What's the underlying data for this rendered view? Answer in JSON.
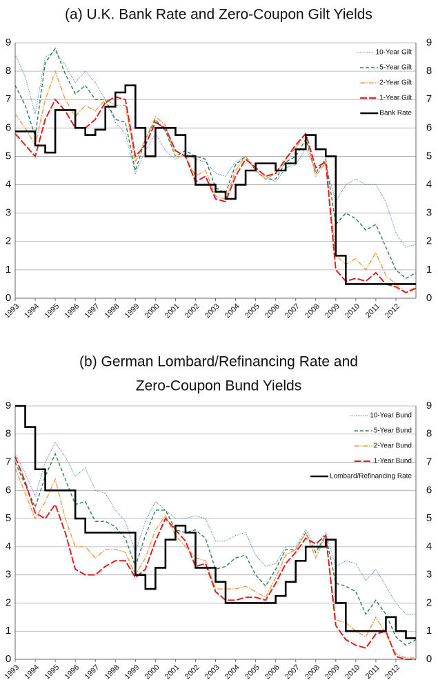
{
  "chart_data": [
    {
      "type": "line",
      "title": [
        "(a) U.K. Bank Rate and Zero-Coupon Gilt Yields"
      ],
      "x": [
        1993,
        1993.5,
        1994,
        1994.5,
        1995,
        1995.5,
        1996,
        1996.5,
        1997,
        1997.5,
        1998,
        1998.5,
        1999,
        1999.5,
        2000,
        2000.5,
        2001,
        2001.5,
        2002,
        2002.5,
        2003,
        2003.5,
        2004,
        2004.5,
        2005,
        2005.5,
        2006,
        2006.5,
        2007,
        2007.5,
        2008,
        2008.5,
        2009,
        2009.5,
        2010,
        2010.5,
        2011,
        2011.5,
        2012,
        2012.5,
        2013
      ],
      "xlim": [
        1993,
        2013
      ],
      "xticks": [
        1993,
        1994,
        1995,
        1996,
        1997,
        1998,
        1999,
        2000,
        2001,
        2002,
        2003,
        2004,
        2005,
        2006,
        2007,
        2008,
        2009,
        2010,
        2011,
        2012
      ],
      "ylim": [
        0,
        9
      ],
      "yticks": [
        0,
        1,
        2,
        3,
        4,
        5,
        6,
        7,
        8,
        9
      ],
      "grid": true,
      "legend": "upper right",
      "series": [
        {
          "name": "10-Year Gilt",
          "color": "#4f81bd",
          "style": "dotted",
          "values": [
            8.6,
            7.8,
            6.5,
            8.5,
            8.7,
            8.2,
            7.6,
            8.0,
            7.6,
            7.0,
            6.2,
            5.8,
            4.4,
            5.2,
            5.8,
            5.2,
            4.9,
            5.1,
            4.9,
            4.8,
            4.4,
            4.3,
            4.8,
            5.0,
            4.6,
            4.3,
            4.1,
            4.6,
            4.7,
            5.3,
            4.5,
            4.7,
            3.4,
            4.0,
            4.2,
            4.0,
            4.0,
            3.4,
            2.3,
            1.8,
            1.9
          ]
        },
        {
          "name": "5-Year Gilt",
          "color": "#2e7d4f",
          "style": "dashed",
          "values": [
            7.5,
            6.8,
            5.7,
            8.3,
            8.8,
            7.9,
            7.2,
            7.5,
            7.0,
            7.0,
            6.3,
            6.2,
            4.5,
            5.6,
            6.3,
            5.9,
            5.0,
            5.2,
            5.0,
            4.9,
            3.9,
            3.7,
            4.7,
            5.0,
            4.5,
            4.2,
            4.2,
            4.8,
            5.0,
            5.6,
            4.4,
            4.9,
            2.6,
            3.0,
            2.8,
            2.4,
            2.6,
            1.8,
            1.0,
            0.7,
            0.9
          ]
        },
        {
          "name": "2-Year Gilt",
          "color": "#f79646",
          "style": "dashdot",
          "values": [
            6.5,
            6.0,
            5.4,
            7.0,
            8.0,
            7.0,
            6.4,
            6.8,
            6.6,
            7.0,
            6.8,
            6.8,
            4.8,
            5.6,
            6.4,
            6.1,
            5.0,
            5.0,
            4.3,
            4.5,
            3.6,
            3.5,
            4.5,
            5.0,
            4.5,
            4.2,
            4.4,
            4.9,
            5.3,
            5.8,
            4.3,
            4.8,
            1.5,
            1.2,
            1.4,
            1.0,
            1.6,
            0.8,
            0.5,
            0.2,
            0.4
          ]
        },
        {
          "name": "1-Year Gilt",
          "color": "#e02020",
          "style": "longdash",
          "values": [
            5.8,
            5.4,
            5.0,
            6.3,
            7.0,
            6.6,
            6.0,
            6.0,
            6.3,
            6.9,
            7.1,
            7.0,
            5.0,
            5.4,
            6.2,
            6.0,
            5.2,
            5.0,
            4.1,
            4.3,
            3.5,
            3.4,
            4.3,
            4.9,
            4.6,
            4.3,
            4.4,
            4.9,
            5.4,
            5.8,
            4.6,
            4.8,
            1.0,
            0.6,
            0.7,
            0.6,
            0.9,
            0.5,
            0.4,
            0.2,
            0.35
          ]
        },
        {
          "name": "Bank Rate",
          "color": "#000000",
          "style": "solid",
          "step": true,
          "values": [
            5.88,
            5.88,
            5.38,
            5.13,
            6.63,
            6.63,
            6.0,
            5.75,
            5.94,
            6.75,
            7.25,
            7.5,
            6.0,
            5.0,
            6.0,
            6.0,
            5.75,
            5.0,
            4.0,
            4.0,
            3.75,
            3.5,
            4.0,
            4.5,
            4.75,
            4.75,
            4.5,
            4.75,
            5.25,
            5.75,
            5.25,
            5.0,
            1.5,
            0.5,
            0.5,
            0.5,
            0.5,
            0.5,
            0.5,
            0.5,
            0.5
          ]
        }
      ]
    },
    {
      "type": "line",
      "title": [
        "(b) German Lombard/Refinancing Rate and",
        "Zero-Coupon Bund Yields"
      ],
      "x": [
        1993,
        1993.5,
        1994,
        1994.5,
        1995,
        1995.5,
        1996,
        1996.5,
        1997,
        1997.5,
        1998,
        1998.5,
        1999,
        1999.5,
        2000,
        2000.5,
        2001,
        2001.5,
        2002,
        2002.5,
        2003,
        2003.5,
        2004,
        2004.5,
        2005,
        2005.5,
        2006,
        2006.5,
        2007,
        2007.5,
        2008,
        2008.5,
        2009,
        2009.5,
        2010,
        2010.5,
        2011,
        2011.5,
        2012,
        2012.5,
        2013
      ],
      "xlim": [
        1993,
        2013
      ],
      "xticks": [
        1993,
        1994,
        1995,
        1996,
        1997,
        1998,
        1999,
        2000,
        2001,
        2002,
        2003,
        2004,
        2005,
        2006,
        2007,
        2008,
        2009,
        2010,
        2011,
        2012
      ],
      "ylim": [
        0,
        9
      ],
      "yticks": [
        0,
        1,
        2,
        3,
        4,
        5,
        6,
        7,
        8,
        9
      ],
      "grid": true,
      "legend": "upper right",
      "series": [
        {
          "name": "10-Year Bund",
          "color": "#4f81bd",
          "style": "dotted",
          "values": [
            7.3,
            6.6,
            5.8,
            7.0,
            7.7,
            7.2,
            6.5,
            6.8,
            6.0,
            5.9,
            5.3,
            4.9,
            3.8,
            4.9,
            5.6,
            5.3,
            5.0,
            5.0,
            5.1,
            5.0,
            4.2,
            4.2,
            4.4,
            4.5,
            3.7,
            3.3,
            3.4,
            4.0,
            4.0,
            4.6,
            4.0,
            4.5,
            3.3,
            3.5,
            3.4,
            2.8,
            3.2,
            2.6,
            2.0,
            1.6,
            1.6
          ]
        },
        {
          "name": "5-Year Bund",
          "color": "#2e7d4f",
          "style": "dashed",
          "values": [
            7.0,
            6.2,
            5.4,
            6.5,
            7.3,
            6.4,
            5.5,
            5.6,
            4.9,
            4.9,
            4.7,
            4.3,
            3.3,
            4.4,
            5.3,
            5.3,
            4.6,
            4.5,
            4.6,
            4.3,
            3.2,
            3.3,
            3.6,
            3.7,
            3.0,
            2.6,
            3.2,
            3.9,
            3.9,
            4.5,
            3.8,
            4.4,
            2.7,
            2.6,
            2.4,
            1.6,
            2.1,
            1.6,
            0.8,
            0.5,
            0.7
          ]
        },
        {
          "name": "2-Year Bund",
          "color": "#f79646",
          "style": "dashdot",
          "values": [
            6.8,
            5.9,
            5.0,
            5.6,
            6.4,
            5.0,
            4.0,
            4.0,
            3.6,
            3.9,
            3.9,
            3.8,
            3.0,
            3.6,
            4.6,
            5.1,
            4.4,
            4.0,
            3.6,
            3.5,
            2.5,
            2.5,
            2.5,
            2.6,
            2.4,
            2.2,
            2.9,
            3.7,
            3.9,
            4.5,
            3.6,
            4.4,
            1.4,
            1.3,
            1.0,
            0.8,
            1.5,
            0.9,
            0.2,
            0.05,
            0.05
          ]
        },
        {
          "name": "1-Year Bund",
          "color": "#e02020",
          "style": "longdash",
          "values": [
            7.2,
            6.3,
            5.2,
            5.0,
            5.5,
            4.5,
            3.2,
            3.0,
            3.0,
            3.3,
            3.5,
            3.5,
            2.9,
            3.2,
            4.2,
            5.0,
            4.6,
            4.2,
            3.3,
            3.4,
            2.4,
            2.1,
            2.1,
            2.2,
            2.2,
            2.1,
            2.7,
            3.4,
            3.8,
            4.3,
            4.1,
            4.4,
            1.2,
            0.7,
            0.5,
            0.4,
            0.9,
            1.0,
            0.1,
            0.0,
            0.0
          ]
        },
        {
          "name": "Lombard/Refinancing Rate",
          "color": "#000000",
          "style": "solid",
          "step": true,
          "values": [
            9.0,
            8.25,
            6.75,
            6.0,
            6.0,
            6.0,
            5.0,
            4.5,
            4.5,
            4.5,
            4.5,
            4.5,
            3.0,
            2.5,
            3.25,
            4.25,
            4.75,
            4.5,
            3.25,
            3.25,
            2.75,
            2.0,
            2.0,
            2.0,
            2.0,
            2.0,
            2.25,
            2.75,
            3.5,
            4.0,
            4.0,
            4.25,
            2.0,
            1.0,
            1.0,
            1.0,
            1.0,
            1.5,
            1.0,
            0.75,
            0.75
          ]
        }
      ]
    }
  ]
}
